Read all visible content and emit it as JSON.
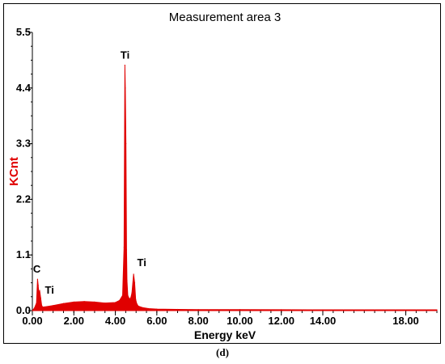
{
  "chart_data": {
    "type": "line",
    "title": "Measurement area 3",
    "xlabel": "Energy keV",
    "ylabel": "KCnt",
    "xlim": [
      0,
      19.5
    ],
    "ylim": [
      0,
      5.5
    ],
    "xticks": [
      "0.00",
      "2.00",
      "4.00",
      "6.00",
      "8.00",
      "10.00",
      "12.00",
      "14.00",
      "18.00"
    ],
    "xtick_values": [
      0,
      2,
      4,
      6,
      8,
      10,
      12,
      14,
      18
    ],
    "yticks": [
      "0.0",
      "1.1",
      "2.2",
      "3.3",
      "4.4",
      "5.5"
    ],
    "ytick_values": [
      0,
      1.1,
      2.2,
      3.3,
      4.4,
      5.5
    ],
    "grid": false,
    "series": [
      {
        "color": "#e00000",
        "x": [
          0.0,
          0.1,
          0.2,
          0.25,
          0.28,
          0.32,
          0.35,
          0.4,
          0.45,
          0.5,
          0.7,
          1.0,
          1.5,
          2.0,
          2.5,
          3.0,
          3.5,
          4.0,
          4.2,
          4.35,
          4.42,
          4.46,
          4.48,
          4.51,
          4.54,
          4.56,
          4.6,
          4.65,
          4.7,
          4.75,
          4.8,
          4.88,
          4.93,
          4.98,
          5.03,
          5.1,
          5.3,
          5.6,
          6.0,
          7.0,
          8.0,
          10.0,
          12.0,
          14.0,
          16.0,
          18.0,
          19.5
        ],
        "y": [
          0.0,
          0.05,
          0.15,
          0.62,
          0.5,
          0.3,
          0.4,
          0.25,
          0.1,
          0.07,
          0.08,
          0.1,
          0.14,
          0.17,
          0.18,
          0.17,
          0.15,
          0.16,
          0.2,
          0.3,
          1.25,
          4.85,
          4.4,
          3.3,
          1.2,
          0.6,
          0.3,
          0.25,
          0.23,
          0.26,
          0.35,
          0.72,
          0.55,
          0.22,
          0.14,
          0.09,
          0.06,
          0.04,
          0.03,
          0.025,
          0.02,
          0.02,
          0.018,
          0.016,
          0.015,
          0.015,
          0.015
        ]
      }
    ],
    "annotations": [
      {
        "text": "Ti",
        "x": 4.48,
        "y": 4.85
      },
      {
        "text": "C",
        "x": 0.27,
        "y": 0.62
      },
      {
        "text": "Ti",
        "x": 0.45,
        "y": 0.3
      },
      {
        "text": "Ti",
        "x": 5.05,
        "y": 0.72
      }
    ]
  },
  "figure": {
    "caption": "(d)",
    "colors": {
      "axis": "#000000",
      "ylabel": "#e00000",
      "spectrum": "#e00000"
    }
  }
}
